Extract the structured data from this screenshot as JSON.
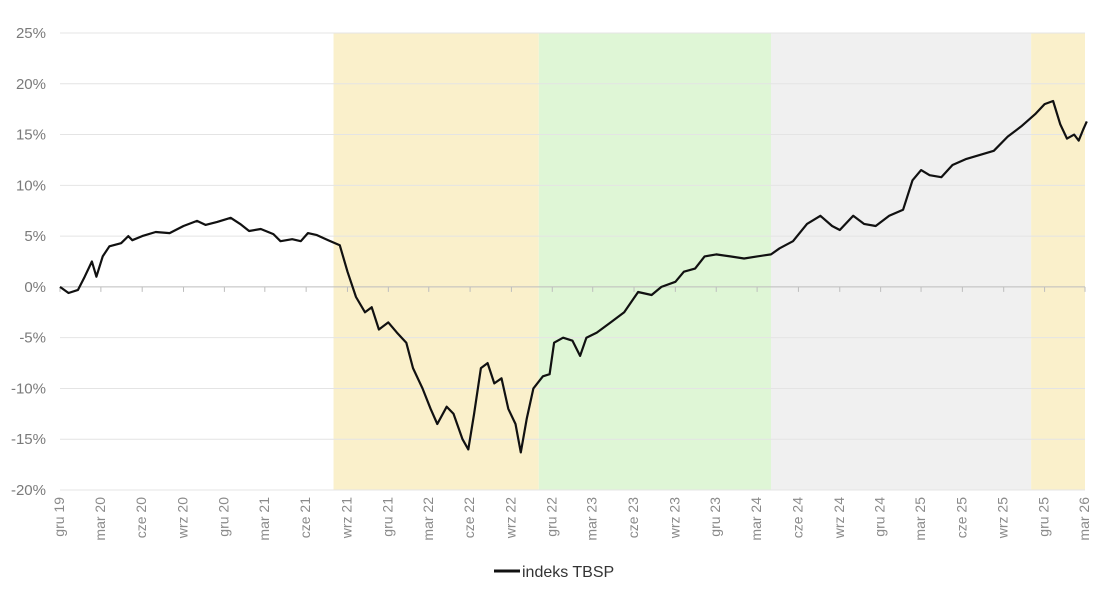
{
  "chart_data": {
    "type": "line",
    "title": "",
    "xlabel": "",
    "ylabel": "",
    "ylim": [
      -20,
      25
    ],
    "y_ticks": [
      "25%",
      "20%",
      "15%",
      "10%",
      "5%",
      "0%",
      "-5%",
      "-10%",
      "-15%",
      "-20%"
    ],
    "y_tick_values": [
      25,
      20,
      15,
      10,
      5,
      0,
      -5,
      -10,
      -15,
      -20
    ],
    "x_ticks": [
      "gru 19",
      "mar 20",
      "cze 20",
      "wrz 20",
      "gru 20",
      "mar 21",
      "cze 21",
      "wrz 21",
      "gru 21",
      "mar 22",
      "cze 22",
      "wrz 22",
      "gru 22",
      "mar 23",
      "cze 23",
      "wrz 23",
      "gru 23",
      "mar 24",
      "cze 24",
      "wrz 24",
      "gru 24",
      "mar 25",
      "cze 25",
      "wrz 25",
      "gru 25",
      "mar 26"
    ],
    "grid": "horizontal",
    "legend": "bottom-center",
    "shaded_periods": [
      {
        "from": "2021-08",
        "to": "2022-11",
        "color": "#faf0cb"
      },
      {
        "from": "2022-11",
        "to": "2024-04",
        "color": "#dff6d6"
      },
      {
        "from": "2024-04",
        "to": "2025-11",
        "color": "#f0f0f0"
      },
      {
        "from": "2025-11",
        "to": "2026-03",
        "color": "#faf0cb"
      }
    ],
    "series": [
      {
        "name": "indeks TBSP",
        "color": "#111111",
        "points": [
          [
            "2019-12-01",
            0.0
          ],
          [
            "2019-12-20",
            -0.6
          ],
          [
            "2020-01-10",
            -0.3
          ],
          [
            "2020-01-25",
            1.0
          ],
          [
            "2020-02-10",
            2.5
          ],
          [
            "2020-02-20",
            1.0
          ],
          [
            "2020-03-05",
            3.0
          ],
          [
            "2020-03-20",
            4.0
          ],
          [
            "2020-04-15",
            4.3
          ],
          [
            "2020-05-01",
            5.0
          ],
          [
            "2020-05-10",
            4.6
          ],
          [
            "2020-06-01",
            5.0
          ],
          [
            "2020-07-01",
            5.4
          ],
          [
            "2020-08-01",
            5.3
          ],
          [
            "2020-09-01",
            6.0
          ],
          [
            "2020-10-01",
            6.5
          ],
          [
            "2020-10-20",
            6.1
          ],
          [
            "2020-11-15",
            6.4
          ],
          [
            "2020-12-15",
            6.8
          ],
          [
            "2021-01-05",
            6.2
          ],
          [
            "2021-01-25",
            5.5
          ],
          [
            "2021-02-20",
            5.7
          ],
          [
            "2021-03-20",
            5.2
          ],
          [
            "2021-04-05",
            4.5
          ],
          [
            "2021-05-01",
            4.7
          ],
          [
            "2021-05-20",
            4.5
          ],
          [
            "2021-06-05",
            5.3
          ],
          [
            "2021-06-25",
            5.1
          ],
          [
            "2021-07-20",
            4.6
          ],
          [
            "2021-08-15",
            4.1
          ],
          [
            "2021-09-01",
            1.5
          ],
          [
            "2021-09-20",
            -1.0
          ],
          [
            "2021-10-10",
            -2.5
          ],
          [
            "2021-10-25",
            -2.0
          ],
          [
            "2021-11-10",
            -4.2
          ],
          [
            "2021-12-01",
            -3.5
          ],
          [
            "2021-12-20",
            -4.5
          ],
          [
            "2022-01-10",
            -5.5
          ],
          [
            "2022-01-25",
            -8.0
          ],
          [
            "2022-02-15",
            -10.0
          ],
          [
            "2022-03-05",
            -12.0
          ],
          [
            "2022-03-20",
            -13.5
          ],
          [
            "2022-04-10",
            -11.8
          ],
          [
            "2022-04-25",
            -12.5
          ],
          [
            "2022-05-15",
            -15.0
          ],
          [
            "2022-05-28",
            -16.0
          ],
          [
            "2022-06-10",
            -12.5
          ],
          [
            "2022-06-25",
            -8.0
          ],
          [
            "2022-07-10",
            -7.5
          ],
          [
            "2022-07-25",
            -9.5
          ],
          [
            "2022-08-10",
            -9.0
          ],
          [
            "2022-08-25",
            -12.0
          ],
          [
            "2022-09-10",
            -13.5
          ],
          [
            "2022-09-22",
            -16.3
          ],
          [
            "2022-10-05",
            -13.0
          ],
          [
            "2022-10-20",
            -10.0
          ],
          [
            "2022-11-10",
            -8.8
          ],
          [
            "2022-11-25",
            -8.6
          ],
          [
            "2022-12-05",
            -5.5
          ],
          [
            "2022-12-25",
            -5.0
          ],
          [
            "2023-01-15",
            -5.3
          ],
          [
            "2023-02-01",
            -6.8
          ],
          [
            "2023-02-15",
            -5.0
          ],
          [
            "2023-03-10",
            -4.5
          ],
          [
            "2023-04-10",
            -3.5
          ],
          [
            "2023-05-10",
            -2.5
          ],
          [
            "2023-06-10",
            -0.5
          ],
          [
            "2023-07-10",
            -0.8
          ],
          [
            "2023-08-01",
            0.0
          ],
          [
            "2023-09-01",
            0.5
          ],
          [
            "2023-09-20",
            1.5
          ],
          [
            "2023-10-15",
            1.8
          ],
          [
            "2023-11-05",
            3.0
          ],
          [
            "2023-12-01",
            3.2
          ],
          [
            "2024-01-01",
            3.0
          ],
          [
            "2024-02-01",
            2.8
          ],
          [
            "2024-03-01",
            3.0
          ],
          [
            "2024-04-01",
            3.2
          ],
          [
            "2024-04-20",
            3.8
          ],
          [
            "2024-05-20",
            4.5
          ],
          [
            "2024-06-20",
            6.2
          ],
          [
            "2024-07-20",
            7.0
          ],
          [
            "2024-08-15",
            6.0
          ],
          [
            "2024-09-01",
            5.6
          ],
          [
            "2024-10-01",
            7.0
          ],
          [
            "2024-10-25",
            6.2
          ],
          [
            "2024-11-20",
            6.0
          ],
          [
            "2024-12-20",
            7.0
          ],
          [
            "2025-01-20",
            7.6
          ],
          [
            "2025-02-10",
            10.5
          ],
          [
            "2025-03-01",
            11.5
          ],
          [
            "2025-03-20",
            11.0
          ],
          [
            "2025-04-15",
            10.8
          ],
          [
            "2025-05-10",
            12.0
          ],
          [
            "2025-06-10",
            12.6
          ],
          [
            "2025-07-10",
            13.0
          ],
          [
            "2025-08-10",
            13.4
          ],
          [
            "2025-09-10",
            14.8
          ],
          [
            "2025-10-10",
            15.8
          ],
          [
            "2025-11-10",
            17.0
          ],
          [
            "2025-12-01",
            18.0
          ],
          [
            "2025-12-20",
            18.3
          ],
          [
            "2026-01-05",
            16.0
          ],
          [
            "2026-01-20",
            14.6
          ],
          [
            "2026-02-05",
            15.0
          ],
          [
            "2026-02-15",
            14.4
          ],
          [
            "2026-02-25",
            15.5
          ],
          [
            "2026-03-05",
            16.3
          ]
        ]
      }
    ]
  }
}
